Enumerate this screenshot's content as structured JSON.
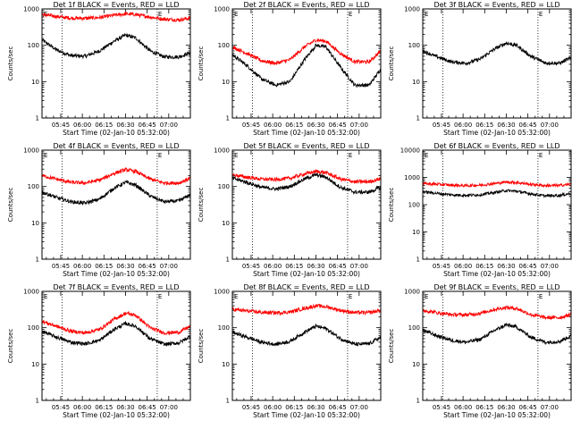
{
  "figure": {
    "xlabel": "Start Time (02-Jan-10 05:32:00)",
    "ylabel": "Counts/sec",
    "xtick_labels": [
      "05:45",
      "06:00",
      "06:15",
      "06:30",
      "06:45",
      "07:00"
    ],
    "xtick_minutes": [
      13,
      28,
      43,
      58,
      73,
      88
    ],
    "x_range_minutes": [
      0,
      103
    ],
    "dotted_lines_minutes": [
      14,
      80
    ],
    "vline_label": "E",
    "colors": {
      "events": "#000000",
      "lld": "#ff0000"
    }
  },
  "chart_data": [
    {
      "type": "line",
      "title": "Det 1f BLACK = Events, RED = LLD",
      "yscale": "log",
      "ylim": [
        1,
        1000
      ],
      "ytick_labels": [
        "1",
        "10",
        "100",
        "1000"
      ],
      "x_units": "minutes after 05:32",
      "series": [
        {
          "name": "Events",
          "color": "#000000",
          "x": [
            0,
            10,
            20,
            30,
            40,
            50,
            58,
            65,
            75,
            85,
            95,
            103
          ],
          "values": [
            140,
            75,
            52,
            50,
            70,
            130,
            190,
            160,
            70,
            48,
            48,
            62
          ]
        },
        {
          "name": "LLD",
          "color": "#ff0000",
          "x": [
            0,
            10,
            20,
            30,
            40,
            50,
            58,
            65,
            75,
            85,
            95,
            103
          ],
          "values": [
            700,
            620,
            560,
            550,
            580,
            670,
            730,
            700,
            600,
            520,
            500,
            560
          ]
        }
      ]
    },
    {
      "type": "line",
      "title": "Det 2f BLACK = Events, RED = LLD",
      "yscale": "log",
      "ylim": [
        1,
        1000
      ],
      "ytick_labels": [
        "1",
        "10",
        "100",
        "1000"
      ],
      "x_units": "minutes after 05:32",
      "series": [
        {
          "name": "Events",
          "color": "#000000",
          "x": [
            0,
            10,
            20,
            30,
            40,
            50,
            58,
            65,
            75,
            85,
            95,
            103
          ],
          "values": [
            55,
            28,
            12,
            8,
            10,
            40,
            100,
            90,
            25,
            8,
            8,
            22
          ]
        },
        {
          "name": "LLD",
          "color": "#ff0000",
          "x": [
            0,
            10,
            20,
            30,
            40,
            50,
            58,
            65,
            75,
            85,
            95,
            103
          ],
          "values": [
            90,
            60,
            38,
            32,
            40,
            90,
            140,
            130,
            60,
            35,
            35,
            70
          ]
        }
      ]
    },
    {
      "type": "line",
      "title": "Det 3f BLACK = Events, RED = LLD",
      "yscale": "log",
      "ylim": [
        1,
        1000
      ],
      "ytick_labels": [
        "1",
        "10",
        "100",
        "1000"
      ],
      "x_units": "minutes after 05:32",
      "series": [
        {
          "name": "Events",
          "color": "#000000",
          "x": [
            0,
            10,
            20,
            30,
            40,
            50,
            58,
            65,
            75,
            85,
            95,
            103
          ],
          "values": [
            70,
            48,
            35,
            32,
            42,
            80,
            115,
            100,
            50,
            33,
            32,
            45
          ]
        }
      ]
    },
    {
      "type": "line",
      "title": "Det 4f BLACK = Events, RED = LLD",
      "yscale": "log",
      "ylim": [
        1,
        1000
      ],
      "ytick_labels": [
        "1",
        "10",
        "100",
        "1000"
      ],
      "x_units": "minutes after 05:32",
      "series": [
        {
          "name": "Events",
          "color": "#000000",
          "x": [
            0,
            10,
            20,
            30,
            40,
            50,
            58,
            65,
            75,
            85,
            95,
            103
          ],
          "values": [
            70,
            50,
            38,
            35,
            45,
            90,
            130,
            110,
            55,
            38,
            40,
            60
          ]
        },
        {
          "name": "LLD",
          "color": "#ff0000",
          "x": [
            0,
            10,
            20,
            30,
            40,
            50,
            58,
            65,
            75,
            85,
            95,
            103
          ],
          "values": [
            200,
            160,
            130,
            125,
            150,
            230,
            290,
            260,
            160,
            125,
            125,
            170
          ]
        }
      ]
    },
    {
      "type": "line",
      "title": "Det 5f BLACK = Events, RED = LLD",
      "yscale": "log",
      "ylim": [
        1,
        1000
      ],
      "ytick_labels": [
        "1",
        "10",
        "100",
        "1000"
      ],
      "x_units": "minutes after 05:32",
      "series": [
        {
          "name": "Events",
          "color": "#000000",
          "x": [
            0,
            10,
            20,
            30,
            40,
            50,
            58,
            65,
            75,
            85,
            95,
            103
          ],
          "values": [
            170,
            130,
            95,
            85,
            100,
            160,
            210,
            180,
            95,
            70,
            70,
            95
          ]
        },
        {
          "name": "LLD",
          "color": "#ff0000",
          "x": [
            0,
            10,
            20,
            30,
            40,
            50,
            58,
            65,
            75,
            85,
            95,
            103
          ],
          "values": [
            210,
            180,
            160,
            155,
            170,
            220,
            260,
            240,
            160,
            135,
            135,
            165
          ]
        }
      ]
    },
    {
      "type": "line",
      "title": "Det 6f BLACK = Events, RED = LLD",
      "yscale": "log",
      "ylim": [
        1,
        10000
      ],
      "ytick_labels": [
        "1",
        "10",
        "100",
        "1000",
        "10000"
      ],
      "x_units": "minutes after 05:32",
      "series": [
        {
          "name": "Events",
          "color": "#000000",
          "x": [
            0,
            10,
            20,
            30,
            40,
            50,
            58,
            65,
            75,
            85,
            95,
            103
          ],
          "values": [
            300,
            260,
            230,
            220,
            230,
            280,
            330,
            310,
            250,
            210,
            220,
            260
          ]
        },
        {
          "name": "LLD",
          "color": "#ff0000",
          "x": [
            0,
            10,
            20,
            30,
            40,
            50,
            58,
            65,
            75,
            85,
            95,
            103
          ],
          "values": [
            600,
            560,
            520,
            500,
            520,
            600,
            680,
            650,
            560,
            500,
            510,
            560
          ]
        }
      ]
    },
    {
      "type": "line",
      "title": "Det 7f BLACK = Events, RED = LLD",
      "yscale": "log",
      "ylim": [
        1,
        1000
      ],
      "ytick_labels": [
        "1",
        "10",
        "100",
        "1000"
      ],
      "x_units": "minutes after 05:32",
      "series": [
        {
          "name": "Events",
          "color": "#000000",
          "x": [
            0,
            10,
            20,
            30,
            40,
            50,
            58,
            65,
            75,
            85,
            95,
            103
          ],
          "values": [
            80,
            55,
            40,
            36,
            45,
            90,
            130,
            110,
            50,
            35,
            38,
            58
          ]
        },
        {
          "name": "LLD",
          "color": "#ff0000",
          "x": [
            0,
            10,
            20,
            30,
            40,
            50,
            58,
            65,
            75,
            85,
            95,
            103
          ],
          "values": [
            150,
            110,
            80,
            72,
            90,
            170,
            250,
            220,
            100,
            72,
            75,
            110
          ]
        }
      ]
    },
    {
      "type": "line",
      "title": "Det 8f BLACK = Events, RED = LLD",
      "yscale": "log",
      "ylim": [
        1,
        1000
      ],
      "ytick_labels": [
        "1",
        "10",
        "100",
        "1000"
      ],
      "x_units": "minutes after 05:32",
      "series": [
        {
          "name": "Events",
          "color": "#000000",
          "x": [
            0,
            10,
            20,
            30,
            40,
            50,
            58,
            65,
            75,
            85,
            95,
            103
          ],
          "values": [
            75,
            55,
            40,
            35,
            42,
            75,
            110,
            95,
            50,
            35,
            36,
            55
          ]
        },
        {
          "name": "LLD",
          "color": "#ff0000",
          "x": [
            0,
            10,
            20,
            30,
            40,
            50,
            58,
            65,
            75,
            85,
            95,
            103
          ],
          "values": [
            320,
            290,
            265,
            255,
            270,
            340,
            400,
            380,
            300,
            260,
            260,
            300
          ]
        }
      ]
    },
    {
      "type": "line",
      "title": "Det 9f BLACK = Events, RED = LLD",
      "yscale": "log",
      "ylim": [
        1,
        1000
      ],
      "ytick_labels": [
        "1",
        "10",
        "100",
        "1000"
      ],
      "x_units": "minutes after 05:32",
      "series": [
        {
          "name": "Events",
          "color": "#000000",
          "x": [
            0,
            10,
            20,
            30,
            40,
            50,
            58,
            65,
            75,
            85,
            95,
            103
          ],
          "values": [
            85,
            60,
            45,
            40,
            48,
            85,
            120,
            105,
            55,
            40,
            42,
            60
          ]
        },
        {
          "name": "LLD",
          "color": "#ff0000",
          "x": [
            0,
            10,
            20,
            30,
            40,
            50,
            58,
            65,
            75,
            85,
            95,
            103
          ],
          "values": [
            300,
            260,
            230,
            225,
            250,
            320,
            360,
            340,
            230,
            190,
            190,
            230
          ]
        }
      ]
    }
  ]
}
